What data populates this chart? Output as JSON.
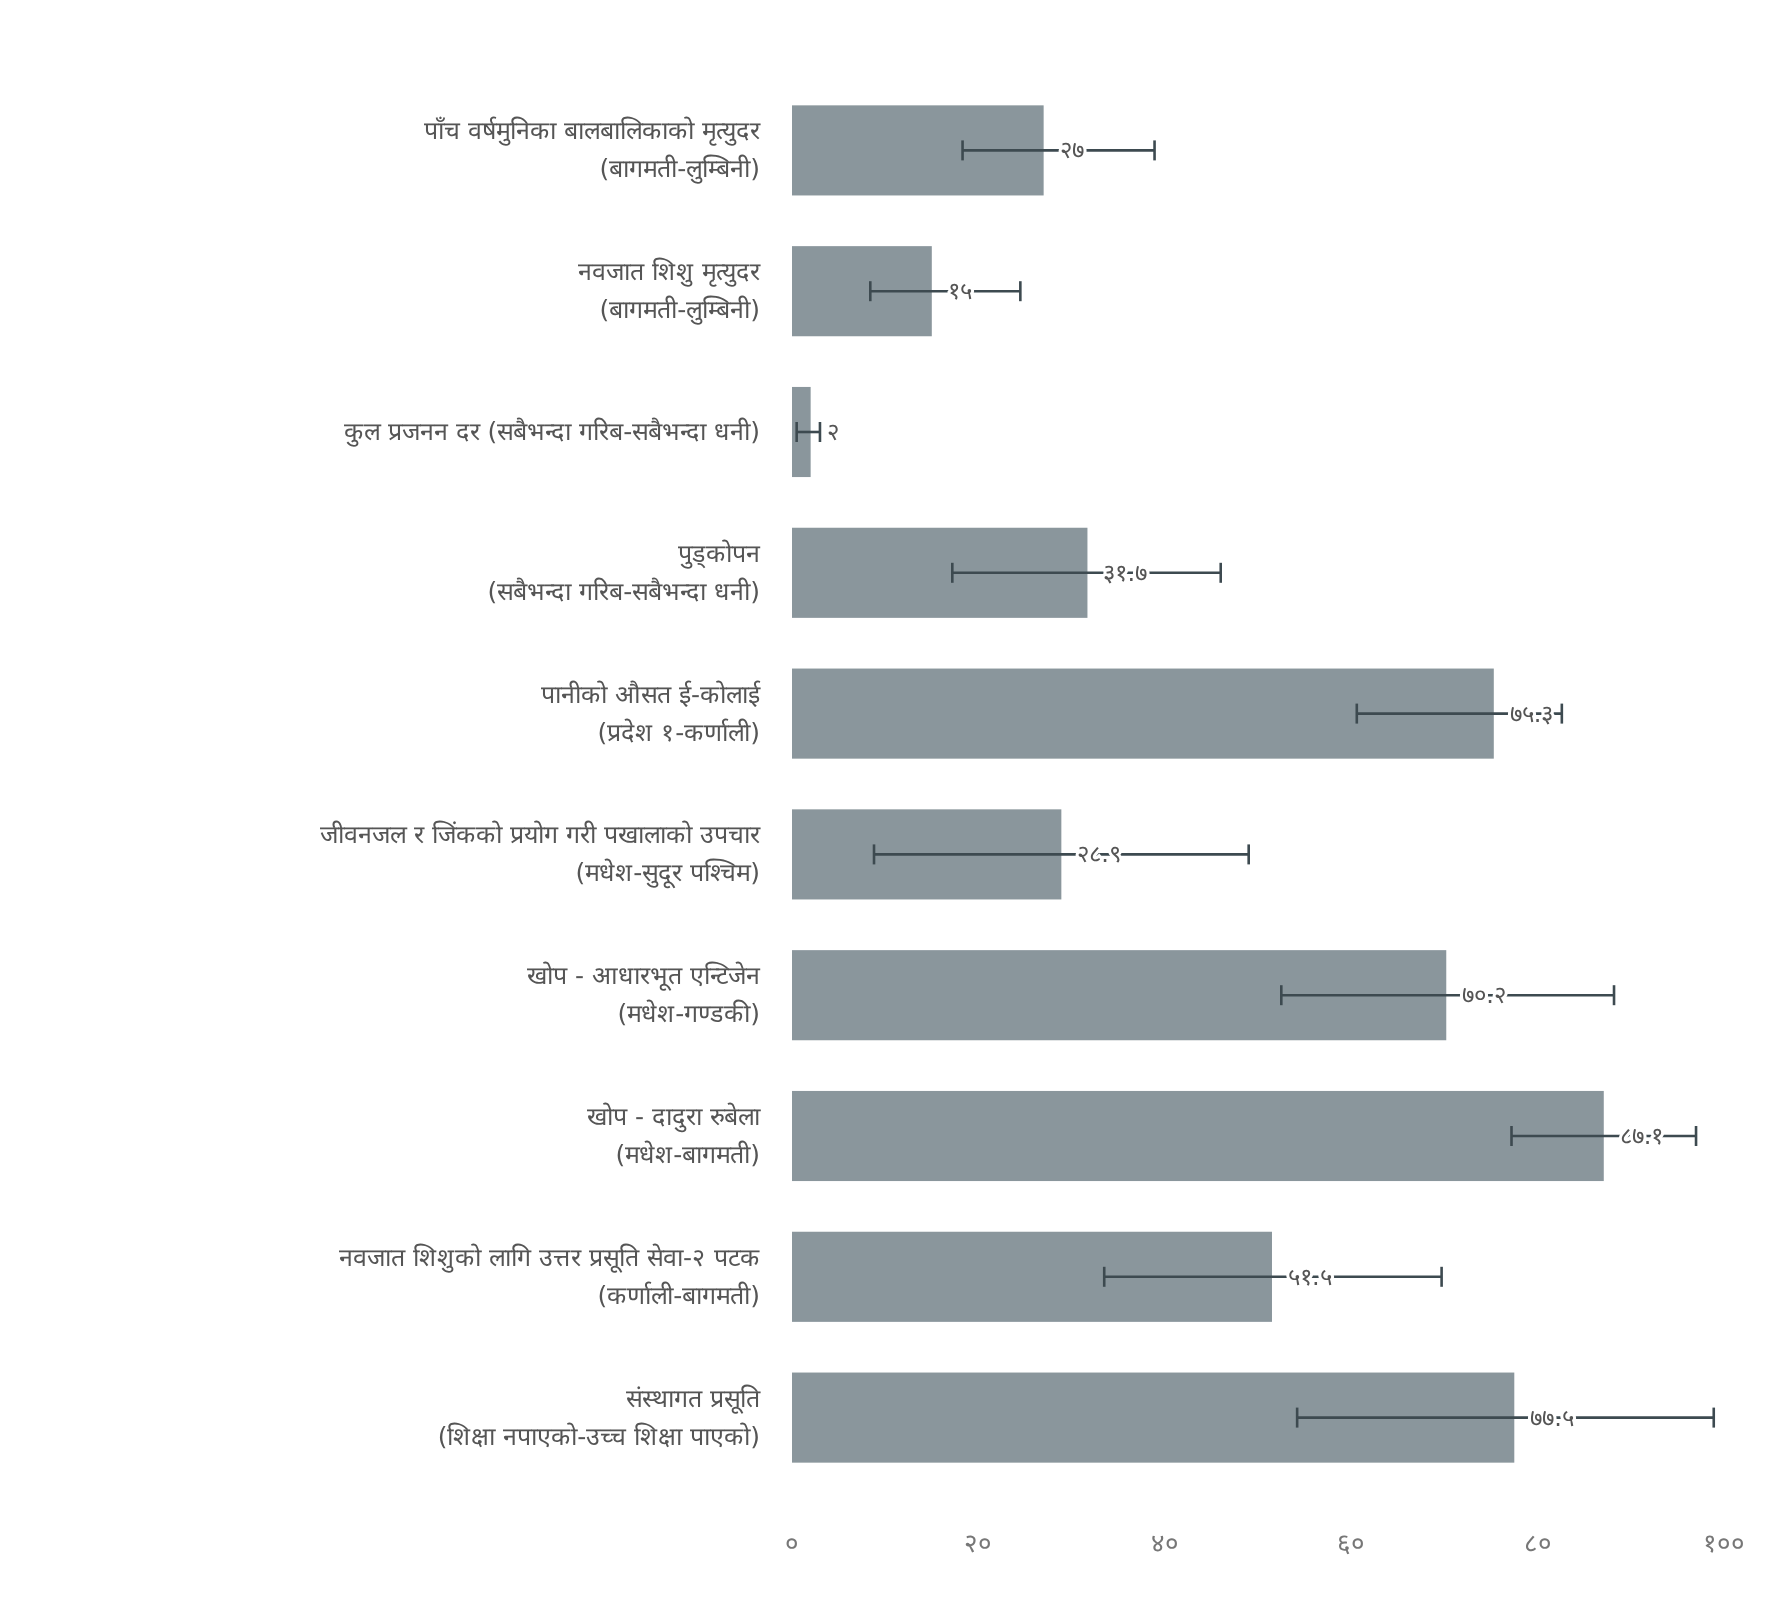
{
  "chart_data": {
    "type": "bar",
    "orientation": "horizontal",
    "categories": [
      "पाँच वर्षमुनिका बालबालिकाको मृत्युदर\n(बागमती-लुम्बिनी)",
      "नवजात शिशु मृत्युदर\n(बागमती-लुम्बिनी)",
      "कुल प्रजनन दर (सबैभन्दा गरिब-सबैभन्दा धनी)",
      "पुड्कोपन\n(सबैभन्दा गरिब-सबैभन्दा धनी)",
      "पानीको औसत ई-कोलाई\n(प्रदेश १-कर्णाली)",
      "जीवनजल र जिंकको प्रयोग गरी पखालाको उपचार\n(मधेश-सुदूर पश्चिम)",
      "खोप - आधारभूत एन्टिजेन\n(मधेश-गण्डकी)",
      "खोप - दादुरा रुबेला\n(मधेश-बागमती)",
      "नवजात शिशुको लागि उत्तर प्रसूति सेवा-२ पटक\n(कर्णाली-बागमती)",
      "संस्थागत प्रसूति\n(शिक्षा नपाएको-उच्च शिक्षा पाएको)"
    ],
    "values": [
      27,
      15,
      2,
      31.7,
      75.3,
      28.9,
      70.2,
      87.1,
      51.5,
      77.5
    ],
    "value_labels": [
      "२७",
      "१५",
      "२",
      "३१.७",
      "७५.३",
      "२८.९",
      "७०.२",
      "८७.१",
      "५१.५",
      "७७.५"
    ],
    "errors": [
      [
        18.3,
        38.9
      ],
      [
        8.4,
        24.5
      ],
      [
        0.5,
        3
      ],
      [
        17.2,
        46
      ],
      [
        60.6,
        82.6
      ],
      [
        8.8,
        49
      ],
      [
        52.5,
        88.2
      ],
      [
        77.2,
        97
      ],
      [
        33.5,
        69.7
      ],
      [
        54.2,
        98.9
      ]
    ],
    "color": "#8a969c",
    "xlim": [
      0,
      100
    ],
    "xticks": [
      {
        "value": 0,
        "label": "०"
      },
      {
        "value": 20,
        "label": "२०"
      },
      {
        "value": 40,
        "label": "४०"
      },
      {
        "value": 60,
        "label": "६०"
      },
      {
        "value": 80,
        "label": "८०"
      },
      {
        "value": 100,
        "label": "१००"
      }
    ]
  }
}
